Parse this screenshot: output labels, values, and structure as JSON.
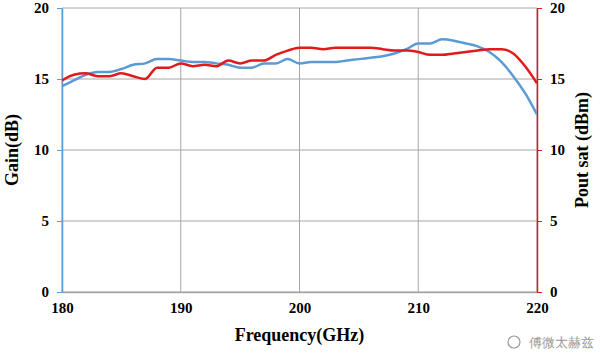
{
  "chart_data": {
    "type": "line",
    "x_label": "Frequency(GHz)",
    "y_label": "Gain(dB)",
    "y2_label": "Pout sat (dBm)",
    "annotations": [
      "傅微太赫兹"
    ],
    "x": [
      180,
      181,
      182,
      183,
      184,
      185,
      186,
      187,
      188,
      189,
      190,
      191,
      192,
      193,
      194,
      195,
      196,
      197,
      198,
      199,
      200,
      201,
      202,
      203,
      204,
      205,
      206,
      207,
      208,
      209,
      210,
      211,
      212,
      213,
      214,
      215,
      216,
      217,
      218,
      219,
      220
    ],
    "series": [
      {
        "name": "Gain",
        "color": "#5b9bd5",
        "axis": "y",
        "values": [
          14.5,
          14.9,
          15.3,
          15.5,
          15.5,
          15.7,
          16.0,
          16.1,
          16.4,
          16.4,
          16.3,
          16.2,
          16.2,
          16.1,
          16.0,
          15.8,
          15.8,
          16.1,
          16.1,
          16.4,
          16.1,
          16.2,
          16.2,
          16.2,
          16.3,
          16.4,
          16.5,
          16.6,
          16.8,
          17.1,
          17.5,
          17.5,
          17.8,
          17.7,
          17.5,
          17.3,
          16.9,
          16.2,
          15.2,
          14.0,
          12.5
        ]
      },
      {
        "name": "Pout sat",
        "color": "#e31a1c",
        "axis": "y2",
        "values": [
          14.9,
          15.3,
          15.4,
          15.2,
          15.2,
          15.4,
          15.2,
          15.0,
          15.8,
          15.8,
          16.1,
          15.9,
          16.0,
          15.9,
          16.3,
          16.1,
          16.3,
          16.3,
          16.7,
          17.0,
          17.2,
          17.2,
          17.1,
          17.2,
          17.2,
          17.2,
          17.2,
          17.1,
          17.0,
          17.0,
          16.9,
          16.7,
          16.7,
          16.8,
          16.9,
          17.0,
          17.1,
          17.1,
          16.8,
          15.9,
          14.7
        ]
      }
    ],
    "xlim": [
      180,
      220
    ],
    "xticks": [
      180,
      190,
      200,
      210,
      220
    ],
    "ylim": [
      0,
      20
    ],
    "yticks": [
      0,
      5,
      10,
      15,
      20
    ],
    "y2lim": [
      0,
      20
    ],
    "y2ticks": [
      0,
      5,
      10,
      15,
      20
    ],
    "grid": true
  }
}
